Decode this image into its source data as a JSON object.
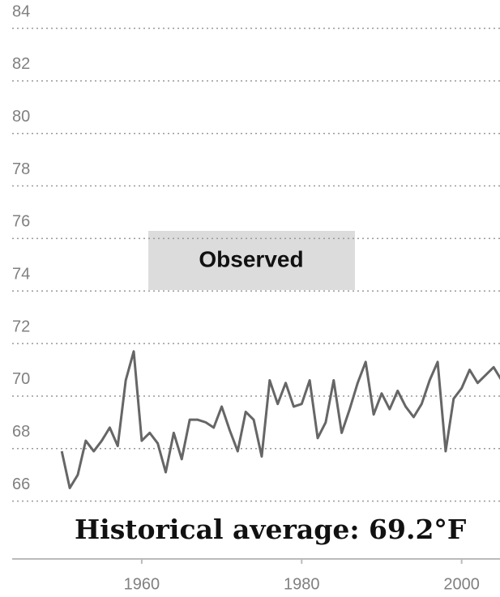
{
  "chart_data": {
    "type": "line",
    "x": [
      1950,
      1951,
      1952,
      1953,
      1954,
      1955,
      1956,
      1957,
      1958,
      1959,
      1960,
      1961,
      1962,
      1963,
      1964,
      1965,
      1966,
      1967,
      1968,
      1969,
      1970,
      1971,
      1972,
      1973,
      1974,
      1975,
      1976,
      1977,
      1978,
      1979,
      1980,
      1981,
      1982,
      1983,
      1984,
      1985,
      1986,
      1987,
      1988,
      1989,
      1990,
      1991,
      1992,
      1993,
      1994,
      1995,
      1996,
      1997,
      1998,
      1999,
      2000,
      2001,
      2002,
      2003,
      2004,
      2005
    ],
    "series": [
      {
        "color": "#666666",
        "values": [
          67.9,
          66.5,
          67.0,
          68.3,
          67.9,
          68.3,
          68.8,
          68.1,
          70.6,
          71.7,
          68.3,
          68.6,
          68.2,
          67.1,
          68.6,
          67.6,
          69.1,
          69.1,
          69.0,
          68.8,
          69.6,
          68.7,
          67.9,
          69.4,
          69.1,
          67.7,
          70.6,
          69.7,
          70.5,
          69.6,
          69.7,
          70.6,
          68.4,
          69.0,
          70.6,
          68.6,
          69.5,
          70.5,
          71.3,
          69.3,
          70.1,
          69.5,
          70.2,
          69.6,
          69.2,
          69.7,
          70.6,
          71.3,
          67.9,
          69.9,
          70.3,
          71.0,
          70.5,
          70.8,
          71.1,
          70.6
        ]
      }
    ],
    "xlim": [
      1944,
      2005
    ],
    "xticks": [
      1960,
      1980,
      2000
    ],
    "ylim": [
      63.8,
      84
    ],
    "yticks": [
      66,
      68,
      70,
      72,
      74,
      76,
      78,
      80,
      82,
      84
    ],
    "grid": true,
    "annotations": [
      "Observed",
      "Historical average: 69.2°F"
    ]
  }
}
